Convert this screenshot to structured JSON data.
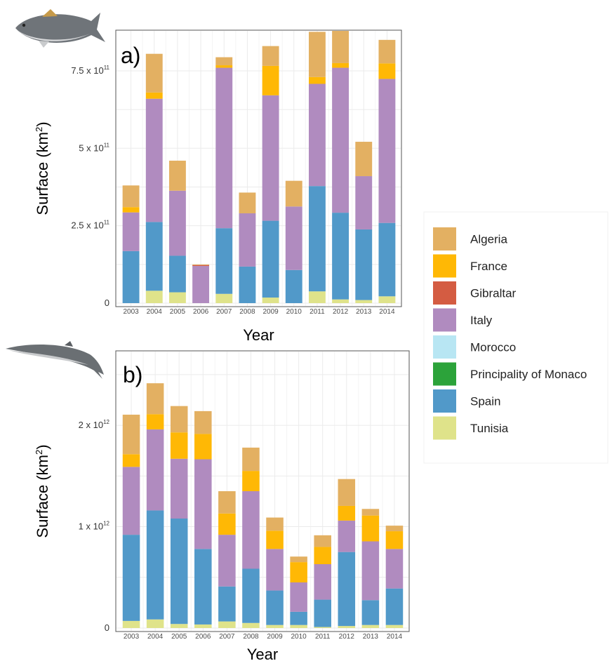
{
  "colors": {
    "Algeria": "#e3b062",
    "France": "#ffb805",
    "Gibraltar": "#d45c42",
    "Italy": "#b08bbf",
    "Morocco": "#b8e6f3",
    "Principality of Monaco": "#2ca33a",
    "Spain": "#5199c9",
    "Tunisia": "#dfe38a"
  },
  "legend": {
    "entries": [
      "Algeria",
      "France",
      "Gibraltar",
      "Italy",
      "Morocco",
      "Principality of Monaco",
      "Spain",
      "Tunisia"
    ]
  },
  "icons": {
    "panel_a": "tuna-icon",
    "panel_b": "whale-icon"
  },
  "chart_data": [
    {
      "type": "bar",
      "stacked": true,
      "panel_label": "a)",
      "xlabel": "Year",
      "ylabel_main": "Surface (km",
      "ylabel_sup": "2",
      "ylabel_end": ")",
      "ylim": [
        0,
        870000000000
      ],
      "grid": true,
      "categories": [
        "2003",
        "2004",
        "2005",
        "2006",
        "2007",
        "2008",
        "2009",
        "2010",
        "2011",
        "2012",
        "2013",
        "2014"
      ],
      "yticks": [
        {
          "value": 0,
          "base": "0",
          "exp": ""
        },
        {
          "value": 250000000000,
          "base": "2.5 x 10",
          "exp": "11"
        },
        {
          "value": 500000000000,
          "base": "5 x 10",
          "exp": "11"
        },
        {
          "value": 750000000000,
          "base": "7.5 x 10",
          "exp": "11"
        }
      ],
      "series": [
        {
          "name": "Tunisia",
          "values": [
            0,
            40000000000,
            35000000000,
            0,
            30000000000,
            0,
            18000000000,
            0,
            38000000000,
            12000000000,
            10000000000,
            22000000000
          ]
        },
        {
          "name": "Spain",
          "values": [
            168000000000,
            222000000000,
            118000000000,
            0,
            212000000000,
            118000000000,
            248000000000,
            107000000000,
            340000000000,
            280000000000,
            228000000000,
            237000000000
          ]
        },
        {
          "name": "Italy",
          "values": [
            125000000000,
            398000000000,
            210000000000,
            120000000000,
            518000000000,
            172000000000,
            405000000000,
            205000000000,
            330000000000,
            468000000000,
            172000000000,
            465000000000
          ]
        },
        {
          "name": "Gibraltar",
          "values": [
            0,
            0,
            0,
            3000000000,
            0,
            0,
            0,
            0,
            0,
            0,
            0,
            0
          ]
        },
        {
          "name": "France",
          "values": [
            17000000000,
            20000000000,
            0,
            0,
            8000000000,
            0,
            95000000000,
            0,
            22000000000,
            15000000000,
            0,
            50000000000
          ]
        },
        {
          "name": "Algeria",
          "values": [
            70000000000,
            125000000000,
            97000000000,
            2000000000,
            26000000000,
            67000000000,
            64000000000,
            83000000000,
            146000000000,
            104000000000,
            111000000000,
            76000000000
          ]
        }
      ]
    },
    {
      "type": "bar",
      "stacked": true,
      "panel_label": "b)",
      "xlabel": "Year",
      "ylabel_main": "Surface (km",
      "ylabel_sup": "2",
      "ylabel_end": ")",
      "ylim": [
        0,
        2700000000000
      ],
      "grid": true,
      "categories": [
        "2003",
        "2004",
        "2005",
        "2006",
        "2007",
        "2008",
        "2009",
        "2010",
        "2011",
        "2012",
        "2013",
        "2014"
      ],
      "yticks": [
        {
          "value": 0,
          "base": "0",
          "exp": ""
        },
        {
          "value": 1000000000000,
          "base": "1 x 10",
          "exp": "12"
        },
        {
          "value": 2000000000000,
          "base": "2 x 10",
          "exp": "12"
        }
      ],
      "series": [
        {
          "name": "Tunisia",
          "values": [
            70000000000,
            85000000000,
            40000000000,
            35000000000,
            65000000000,
            50000000000,
            30000000000,
            30000000000,
            10000000000,
            20000000000,
            30000000000,
            30000000000
          ]
        },
        {
          "name": "Spain",
          "values": [
            850000000000,
            1075000000000,
            1040000000000,
            745000000000,
            345000000000,
            535000000000,
            340000000000,
            130000000000,
            270000000000,
            730000000000,
            245000000000,
            360000000000
          ]
        },
        {
          "name": "Italy",
          "values": [
            670000000000,
            800000000000,
            590000000000,
            885000000000,
            510000000000,
            765000000000,
            410000000000,
            290000000000,
            350000000000,
            310000000000,
            580000000000,
            390000000000
          ]
        },
        {
          "name": "France",
          "values": [
            125000000000,
            150000000000,
            260000000000,
            250000000000,
            210000000000,
            200000000000,
            180000000000,
            200000000000,
            170000000000,
            145000000000,
            255000000000,
            175000000000
          ]
        },
        {
          "name": "Algeria",
          "values": [
            390000000000,
            305000000000,
            260000000000,
            225000000000,
            220000000000,
            230000000000,
            130000000000,
            55000000000,
            115000000000,
            265000000000,
            65000000000,
            55000000000
          ]
        }
      ]
    }
  ]
}
